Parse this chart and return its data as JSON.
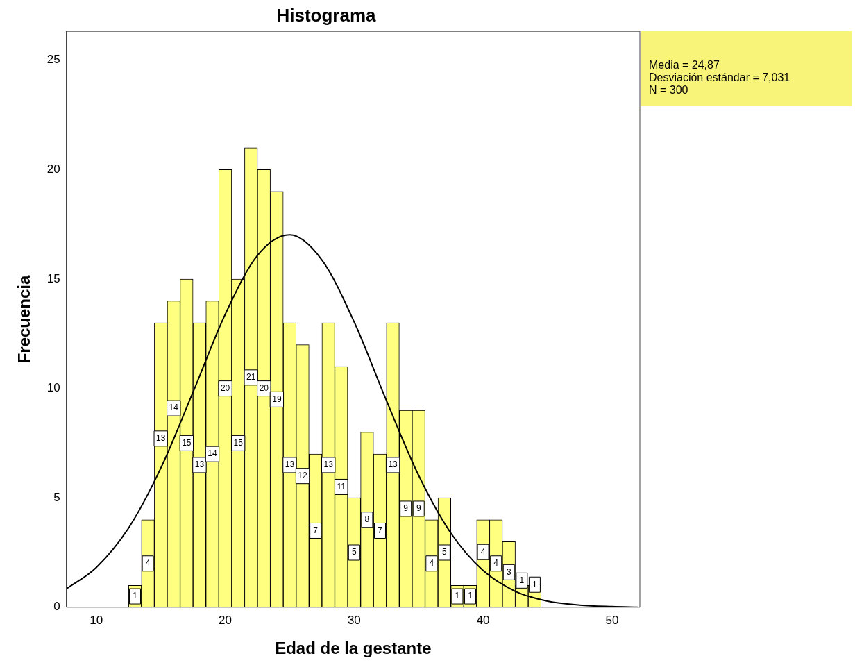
{
  "chart_data": {
    "type": "histogram",
    "title": "Histograma",
    "xlabel": "Edad de la gestante",
    "ylabel": "Frecuencia",
    "bins": [
      12.5,
      13.5,
      14.5,
      15.5,
      16.5,
      17.5,
      18.5,
      19.5,
      20.5,
      21.5,
      22.5,
      23.5,
      24.5,
      25.5,
      26.5,
      27.5,
      28.5,
      29.5,
      30.5,
      31.5,
      32.5,
      33.5,
      34.5,
      35.5,
      36.5,
      37.5,
      38.5,
      39.5,
      40.5,
      41.5,
      42.5,
      43.5,
      44.5
    ],
    "values": [
      1,
      4,
      13,
      14,
      15,
      13,
      14,
      20,
      15,
      21,
      20,
      19,
      13,
      12,
      7,
      13,
      11,
      5,
      8,
      7,
      13,
      9,
      9,
      4,
      5,
      1,
      1,
      4,
      4,
      3,
      1,
      1
    ],
    "color": "#ffff80",
    "value_labels": [
      "1",
      "4",
      "13",
      "14",
      "15",
      "13",
      "14",
      "20",
      "15",
      "21",
      "20",
      "19",
      "13",
      "12",
      "7",
      "13",
      "11",
      "5",
      "8",
      "7",
      "13",
      "9",
      "9",
      "4",
      "5",
      "1",
      "1",
      "4",
      "4",
      "3",
      "1",
      "1"
    ],
    "series": [
      {
        "type": "line",
        "color": "#000000",
        "x": [
          7.7,
          10,
          12.5,
          15,
          17.5,
          20,
          22.5,
          25,
          27.5,
          30,
          32.5,
          35,
          37.5,
          40,
          42.5,
          45,
          47.5,
          50,
          52
        ],
        "values": [
          0.85,
          1.82,
          3.62,
          6.36,
          9.83,
          13.39,
          16.08,
          17.02,
          15.87,
          13.04,
          9.45,
          6.03,
          3.39,
          1.68,
          0.73,
          0.28,
          0.1,
          0.03,
          0
        ]
      }
    ],
    "xlim": [
      7.68,
      52.16
    ],
    "xticks": [
      10,
      20,
      30,
      40,
      50
    ],
    "ylim": [
      0,
      26.32
    ],
    "yticks": [
      0,
      5,
      10,
      15,
      20,
      25
    ],
    "grid": false,
    "legend": false,
    "marker": "none",
    "annotations": [
      "Media = 24,87",
      "Desviación estándar = 7,031",
      "N = 300"
    ]
  }
}
